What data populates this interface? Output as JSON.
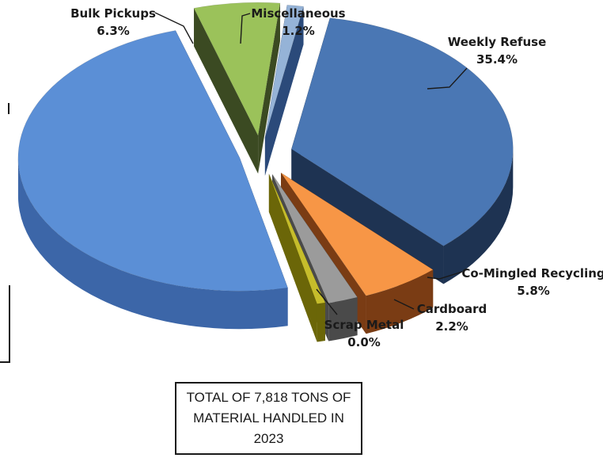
{
  "chart_data": {
    "type": "pie",
    "style": "3d-exploded",
    "slices": [
      {
        "name": "Weekly Refuse",
        "percent_label": "35.4%",
        "value": 35.4,
        "top": "#4a77b4",
        "side": "#1e3352",
        "labeled": true
      },
      {
        "name": "Co-Mingled Recycling",
        "percent_label": "5.8%",
        "value": 5.8,
        "top": "#f79646",
        "side": "#7a3c14",
        "labeled": true
      },
      {
        "name": "Cardboard",
        "percent_label": "2.2%",
        "value": 2.2,
        "top": "#9b9b9b",
        "side": "#4a4a4a",
        "labeled": true
      },
      {
        "name": "Scrap Metal",
        "percent_label": "0.0%",
        "value": 0.0,
        "top": "#c6bd2b",
        "side": "#6b6608",
        "labeled": true
      },
      {
        "name": "",
        "percent_label": "",
        "value": 49.1,
        "top": "#5b8fd6",
        "side": "#3c66a8",
        "labeled": false
      },
      {
        "name": "Bulk Pickups",
        "percent_label": "6.3%",
        "value": 6.3,
        "top": "#9bc25a",
        "side": "#3b4a22",
        "labeled": true
      },
      {
        "name": "Miscellaneous",
        "percent_label": "1.2%",
        "value": 1.2,
        "top": "#95b3d7",
        "side": "#2b4a7a",
        "labeled": true
      }
    ]
  },
  "summary_box": {
    "text": "TOTAL OF 7,818 TONS OF MATERIAL HANDLED IN 2023"
  }
}
